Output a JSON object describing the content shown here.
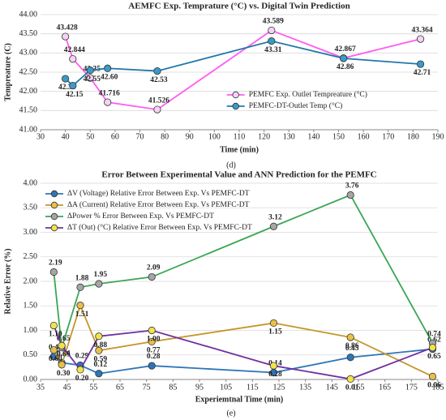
{
  "chart_data": [
    {
      "type": "line",
      "title": "AEMFC Exp. Temprature (°C) vs. Digital Twin Prediction",
      "x_label": "Time (min)",
      "y_label": "Tempreature (C)",
      "caption": "(d)",
      "x": [
        40,
        43,
        50,
        57,
        77,
        123,
        152,
        183
      ],
      "xlim": [
        30,
        190
      ],
      "xticks": [
        30,
        40,
        50,
        60,
        70,
        80,
        90,
        100,
        110,
        120,
        130,
        140,
        150,
        160,
        170,
        180,
        190
      ],
      "ylim": [
        41,
        44
      ],
      "yticks": [
        {
          "value": 41,
          "label": "41.00"
        },
        {
          "value": 41.5,
          "label": "41.50"
        },
        {
          "value": 42,
          "label": "42.00"
        },
        {
          "value": 42.5,
          "label": "42.50"
        },
        {
          "value": 43,
          "label": "43.00"
        },
        {
          "value": 43.5,
          "label": "43.50"
        },
        {
          "value": 44,
          "label": "44.00"
        }
      ],
      "legend": "lower right",
      "series": [
        {
          "name": "PEMFC Exp. Outlet Tempreature (°C)",
          "color": "#ff5cf0",
          "marker_fill": "#f6d2f4",
          "values": [
            43.428,
            42.844,
            42.35,
            41.716,
            41.526,
            43.589,
            42.867,
            43.364
          ],
          "value_labels": [
            "43.428",
            "42.844",
            "42.35",
            "41.716",
            "41.526",
            "43.589",
            "42.867",
            "43.364"
          ]
        },
        {
          "name": "PEMFC-DT-Outlet Temp (°C)",
          "color": "#2277aa",
          "marker_fill": "#3a9ac8",
          "values": [
            42.33,
            42.15,
            42.55,
            42.6,
            42.53,
            43.31,
            42.86,
            42.71
          ],
          "value_labels": [
            "42.33",
            "42.15",
            "42.55",
            "42.60",
            "42.53",
            "43.31",
            "42.86",
            "42.71"
          ]
        }
      ]
    },
    {
      "type": "line",
      "title": "Error Between Experimental Value and ANN Prediction for the PEMFC",
      "x_label": "Experiemtnal Time (min)",
      "y_label": "Relative Error (%)",
      "caption": "(e)",
      "x": [
        40,
        43,
        50,
        57,
        77,
        123,
        152,
        183
      ],
      "xlim": [
        35,
        185
      ],
      "xticks": [
        35,
        45,
        55,
        65,
        75,
        85,
        95,
        105,
        115,
        125,
        135,
        145,
        155,
        165,
        175,
        185
      ],
      "ylim": [
        0,
        4
      ],
      "yticks": [
        {
          "value": 0,
          "label": "0.00"
        },
        {
          "value": 0.5,
          "label": "0.50"
        },
        {
          "value": 1,
          "label": "1.00"
        },
        {
          "value": 1.5,
          "label": "1.50"
        },
        {
          "value": 2,
          "label": "2.00"
        },
        {
          "value": 2.5,
          "label": "2.50"
        },
        {
          "value": 3,
          "label": "3.00"
        },
        {
          "value": 3.5,
          "label": "3.50"
        },
        {
          "value": 4,
          "label": "4.00"
        }
      ],
      "legend": "upper left",
      "series": [
        {
          "name": "ΔV (Voltage) Relative Error Between Exp. Vs PEMFC-DT",
          "color": "#2e75b6",
          "marker_fill": "#2e75b6",
          "values": [
            0.47,
            0.34,
            0.29,
            0.12,
            0.28,
            0.14,
            0.45,
            0.62
          ],
          "value_labels": [
            "0.47",
            "0.34",
            "0.29",
            "0.12",
            "0.28",
            "0.14",
            "0.45",
            "0.62"
          ]
        },
        {
          "name": "ΔA (Current) Relative Error Between Exp. Vs PEMFC-DT",
          "color": "#c5962a",
          "marker_fill": "#e8c04a",
          "values": [
            0.6,
            0.3,
            1.51,
            0.59,
            0.77,
            1.15,
            0.86,
            0.06
          ],
          "value_labels": [
            "0.60",
            "0.30",
            "1.51",
            "0.59",
            "0.77",
            "1.15",
            "0.86",
            "0.06"
          ]
        },
        {
          "name": "ΔPower % Error Between Exp. Vs PEMFC-DT",
          "color": "#3aa655",
          "marker_fill": "#a6a6a6",
          "values": [
            2.19,
            0.65,
            1.88,
            1.95,
            2.09,
            3.12,
            3.76,
            0.74
          ],
          "value_labels": [
            "2.19",
            "0.65",
            "1.88",
            "1.95",
            "2.09",
            "3.12",
            "3.76",
            "0.74"
          ]
        },
        {
          "name": "ΔT (Out) (°C) Relative Error Between Exp. Vs PEMFC-DT",
          "color": "#7030a0",
          "marker_fill": "#f2e34a",
          "values": [
            1.1,
            0.69,
            0.2,
            0.88,
            1.0,
            0.28,
            0.01,
            0.65
          ],
          "value_labels": [
            "1.10",
            "0.69",
            "0.20",
            "0.88",
            "1.00",
            "0.28",
            "0.01",
            "0.65"
          ]
        }
      ]
    }
  ]
}
